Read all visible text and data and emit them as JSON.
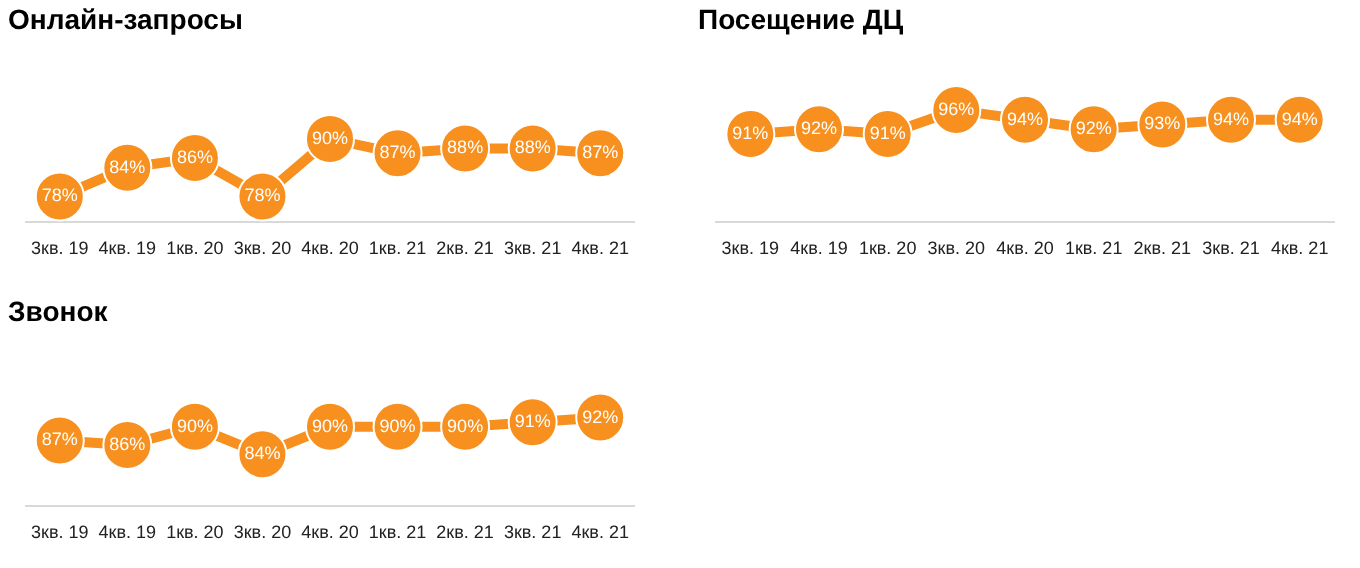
{
  "chart_data": [
    {
      "type": "line",
      "title": "Онлайн-запросы",
      "categories": [
        "3кв. 19",
        "4кв. 19",
        "1кв. 20",
        "3кв. 20",
        "4кв. 20",
        "1кв. 21",
        "2кв. 21",
        "3кв. 21",
        "4кв. 21"
      ],
      "values": [
        78,
        84,
        86,
        78,
        90,
        87,
        88,
        88,
        87
      ],
      "value_labels": [
        "78%",
        "84%",
        "86%",
        "78%",
        "90%",
        "87%",
        "88%",
        "88%",
        "87%"
      ],
      "color": "#f7901e",
      "marker": "circle",
      "grid": false,
      "legend": false
    },
    {
      "type": "line",
      "title": "Посещение ДЦ",
      "categories": [
        "3кв. 19",
        "4кв. 19",
        "1кв. 20",
        "3кв. 20",
        "4кв. 20",
        "1кв. 21",
        "2кв. 21",
        "3кв. 21",
        "4кв. 21"
      ],
      "values": [
        91,
        92,
        91,
        96,
        94,
        92,
        93,
        94,
        94
      ],
      "value_labels": [
        "91%",
        "92%",
        "91%",
        "96%",
        "94%",
        "92%",
        "93%",
        "94%",
        "94%"
      ],
      "color": "#f7901e",
      "marker": "circle",
      "grid": false,
      "legend": false
    },
    {
      "type": "line",
      "title": "Звонок",
      "categories": [
        "3кв. 19",
        "4кв. 19",
        "1кв. 20",
        "3кв. 20",
        "4кв. 20",
        "1кв. 21",
        "2кв. 21",
        "3кв. 21",
        "4кв. 21"
      ],
      "values": [
        87,
        86,
        90,
        84,
        90,
        90,
        90,
        91,
        92
      ],
      "value_labels": [
        "87%",
        "86%",
        "90%",
        "84%",
        "90%",
        "90%",
        "90%",
        "91%",
        "92%"
      ],
      "color": "#f7901e",
      "marker": "circle",
      "grid": false,
      "legend": false
    }
  ]
}
